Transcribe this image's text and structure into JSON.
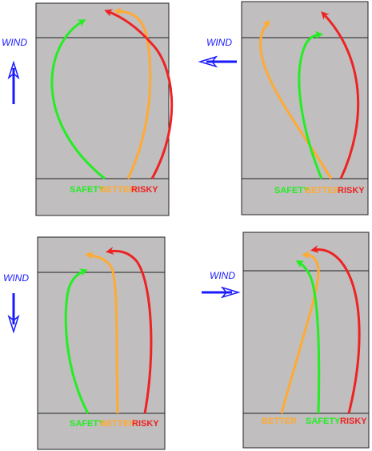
{
  "labels": {
    "wind": "WIND",
    "safety": "SAFETY",
    "better": "BETTER",
    "risky": "RISKY"
  },
  "colors": {
    "safety": "#22ee22",
    "better": "#ffaa33",
    "risky": "#ee2222",
    "wind": "#1a1aff",
    "field": "#c0bebe"
  },
  "panels": [
    {
      "id": "top-left",
      "wind_direction": "north"
    },
    {
      "id": "top-right",
      "wind_direction": "west"
    },
    {
      "id": "bottom-left",
      "wind_direction": "south"
    },
    {
      "id": "bottom-right",
      "wind_direction": "east"
    }
  ]
}
